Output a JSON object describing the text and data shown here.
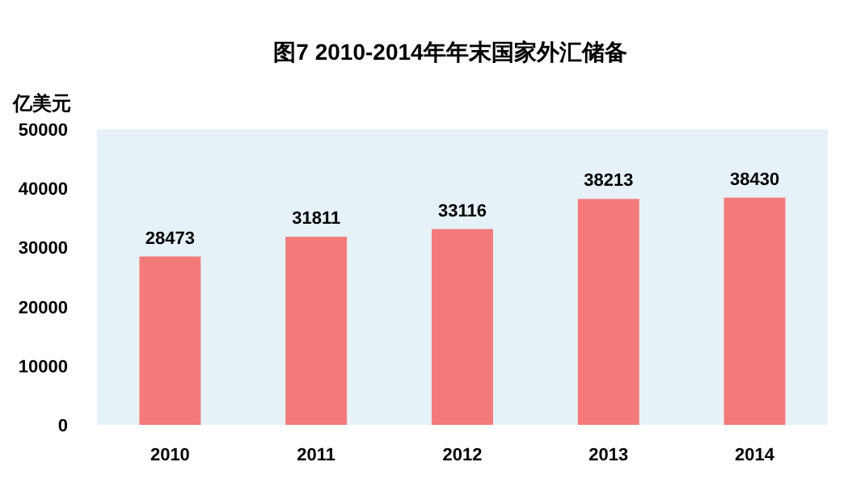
{
  "chart_data": {
    "type": "bar",
    "title": "图7  2010-2014年年末国家外汇储备",
    "ylabel": "亿美元",
    "categories": [
      "2010",
      "2011",
      "2012",
      "2013",
      "2014"
    ],
    "values": [
      28473,
      31811,
      33116,
      38213,
      38430
    ],
    "color": "#f47a7a",
    "ylim": [
      0,
      50000
    ],
    "yticks": [
      0,
      10000,
      20000,
      30000,
      40000,
      50000
    ],
    "data_labels": true
  }
}
